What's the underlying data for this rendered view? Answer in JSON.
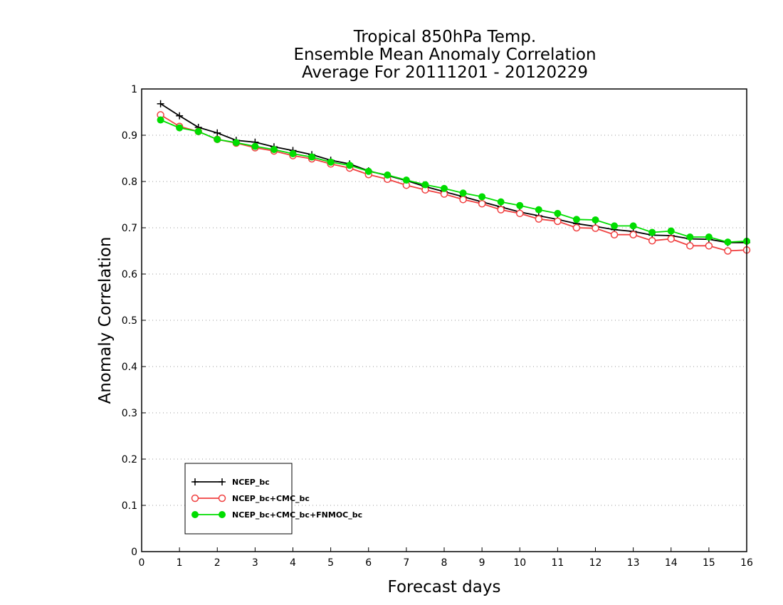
{
  "chart_data": {
    "type": "line",
    "title": [
      "Tropical 850hPa Temp.",
      "Ensemble Mean Anomaly Correlation",
      "Average For 20111201 - 20120229"
    ],
    "xlabel": "Forecast days",
    "ylabel": "Anomaly Correlation",
    "xlim": [
      0,
      16
    ],
    "ylim": [
      0,
      1
    ],
    "xticks": [
      0,
      1,
      2,
      3,
      4,
      5,
      6,
      7,
      8,
      9,
      10,
      11,
      12,
      13,
      14,
      15,
      16
    ],
    "yticks": [
      0,
      0.1,
      0.2,
      0.3,
      0.4,
      0.5,
      0.6,
      0.7,
      0.8,
      0.9,
      1
    ],
    "ytick_labels": [
      "0",
      "0.1",
      "0.2",
      "0.3",
      "0.4",
      "0.5",
      "0.6",
      "0.7",
      "0.8",
      "0.9",
      "1"
    ],
    "grid": "horizontal-dotted",
    "legend_position": "bottom-left",
    "x": [
      0.5,
      1,
      1.5,
      2,
      2.5,
      3,
      3.5,
      4,
      4.5,
      5,
      5.5,
      6,
      6.5,
      7,
      7.5,
      8,
      8.5,
      9,
      9.5,
      10,
      10.5,
      11,
      11.5,
      12,
      12.5,
      13,
      13.5,
      14,
      14.5,
      15,
      15.5,
      16
    ],
    "series": [
      {
        "name": "NCEP_bc",
        "color": "#000000",
        "marker": "plus",
        "values": [
          0.968,
          0.942,
          0.917,
          0.905,
          0.889,
          0.885,
          0.875,
          0.867,
          0.858,
          0.846,
          0.838,
          0.823,
          0.813,
          0.802,
          0.789,
          0.778,
          0.767,
          0.756,
          0.745,
          0.734,
          0.726,
          0.718,
          0.709,
          0.703,
          0.696,
          0.692,
          0.684,
          0.683,
          0.676,
          0.675,
          0.668,
          0.668
        ]
      },
      {
        "name": "NCEP_bc+CMC_bc",
        "color": "#f04040",
        "marker": "open-circle",
        "values": [
          0.944,
          0.919,
          0.908,
          0.891,
          0.883,
          0.873,
          0.866,
          0.856,
          0.849,
          0.838,
          0.829,
          0.815,
          0.805,
          0.792,
          0.782,
          0.773,
          0.761,
          0.752,
          0.739,
          0.731,
          0.719,
          0.714,
          0.7,
          0.699,
          0.685,
          0.685,
          0.672,
          0.676,
          0.661,
          0.661,
          0.65,
          0.652
        ]
      },
      {
        "name": "NCEP_bc+CMC_bc+FNMOC_bc",
        "color": "#00dd00",
        "marker": "filled-circle",
        "values": [
          0.933,
          0.916,
          0.908,
          0.891,
          0.884,
          0.876,
          0.869,
          0.86,
          0.853,
          0.842,
          0.835,
          0.822,
          0.814,
          0.803,
          0.793,
          0.785,
          0.775,
          0.767,
          0.756,
          0.748,
          0.739,
          0.731,
          0.718,
          0.717,
          0.704,
          0.704,
          0.69,
          0.693,
          0.68,
          0.68,
          0.669,
          0.671
        ]
      }
    ]
  }
}
